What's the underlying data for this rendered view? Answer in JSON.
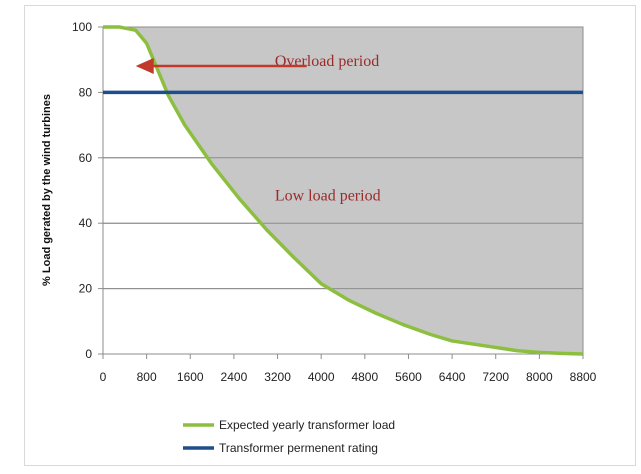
{
  "chart_data": {
    "type": "area",
    "title": "",
    "xlabel": "",
    "ylabel": "% Load gerated by the wind turbines",
    "xlim": [
      0,
      8800
    ],
    "ylim": [
      0,
      100
    ],
    "x_ticks": [
      0,
      800,
      1600,
      2400,
      3200,
      4000,
      4800,
      5600,
      6400,
      7200,
      8000,
      8800
    ],
    "y_ticks": [
      0,
      20,
      40,
      60,
      80,
      100
    ],
    "grid": "horizontal",
    "legend_position": "bottom",
    "series": [
      {
        "name": "Expected yearly transformer load",
        "color": "#8cbf3f",
        "fill_color": "#c7c7c7",
        "x": [
          0,
          300,
          600,
          800,
          1000,
          1200,
          1500,
          2000,
          2500,
          3000,
          3500,
          4000,
          4500,
          5000,
          5500,
          6000,
          6400,
          7000,
          7600,
          8000,
          8400,
          8800
        ],
        "y": [
          100,
          100,
          99,
          95,
          87,
          79,
          70,
          58,
          47.5,
          38,
          29.5,
          21.5,
          16.5,
          12.5,
          9,
          6,
          4,
          2.5,
          1,
          0.5,
          0.2,
          0
        ]
      },
      {
        "name": "Transformer permenent rating",
        "color": "#1f4e8c",
        "x": [
          0,
          8800
        ],
        "y": [
          80,
          80
        ]
      }
    ],
    "annotations": [
      {
        "text": "Overload period",
        "x": 4800,
        "y": 88,
        "color": "#9b2b2b"
      },
      {
        "text": "Low load period",
        "x": 4800,
        "y": 47,
        "color": "#9b2b2b"
      }
    ],
    "arrow": {
      "from": [
        3000,
        89
      ],
      "to": [
        600,
        89
      ],
      "color": "#c0392b"
    }
  }
}
